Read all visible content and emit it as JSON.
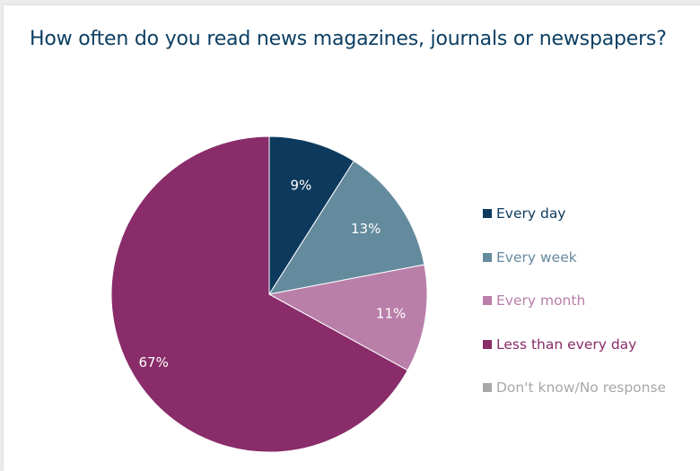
{
  "chart_data": {
    "type": "pie",
    "title": "How often do you read news magazines, journals or newspapers?",
    "slices": [
      {
        "name": "Every day",
        "value": 9,
        "label": "9%",
        "color": "#0d3a5c"
      },
      {
        "name": "Every week",
        "value": 13,
        "label": "13%",
        "color": "#648a9e"
      },
      {
        "name": "Every month",
        "value": 11,
        "label": "11%",
        "color": "#b97fa9"
      },
      {
        "name": "Less than every day",
        "value": 67,
        "label": "67%",
        "color": "#892c69"
      }
    ],
    "legend": [
      {
        "label": "Every day",
        "color": "#0d3a5c"
      },
      {
        "label": "Every week",
        "color": "#648a9e"
      },
      {
        "label": "Every month",
        "color": "#b97fa9"
      },
      {
        "label": "Less than every day",
        "color": "#892c69"
      },
      {
        "label": "Don't know/No response",
        "color": "#a8a8a8"
      }
    ],
    "legend_position": "right"
  }
}
